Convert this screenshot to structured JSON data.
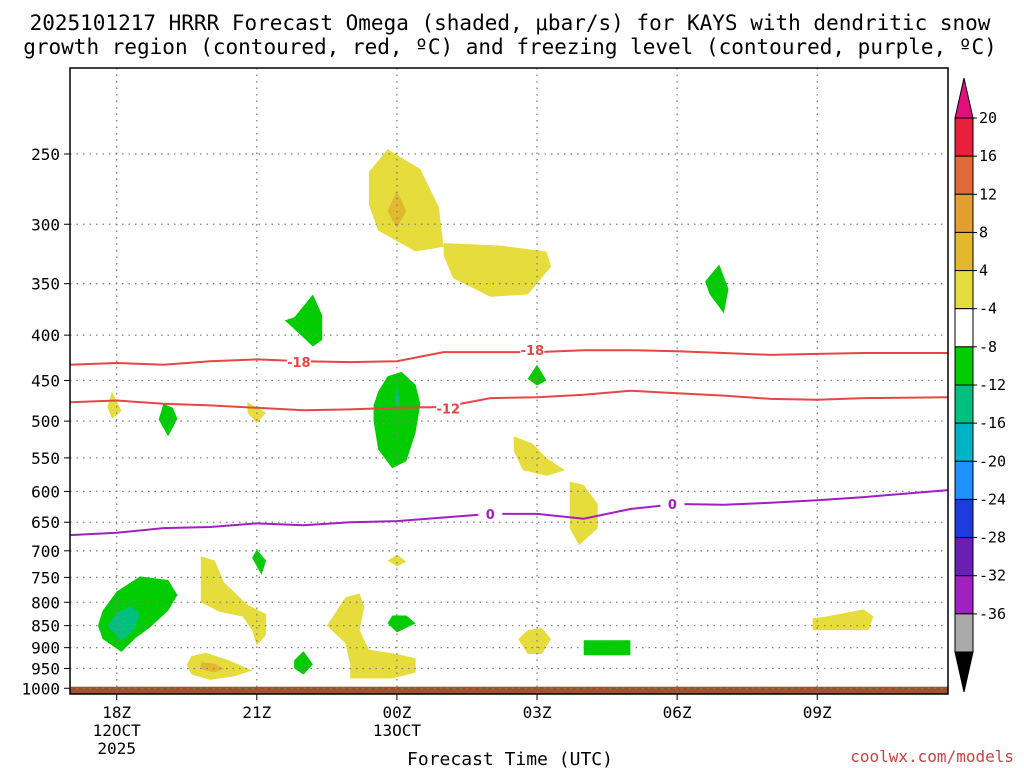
{
  "chart_data": {
    "type": "contour",
    "title_line1": "2025101217 HRRR Forecast Omega (shaded, μbar/s) for KAYS with dendritic snow",
    "title_line2": "growth region (contoured, red, ºC) and freezing level (contoured, purple, ºC)",
    "xlabel": "Forecast Time (UTC)",
    "ylabel": "",
    "x_ticks": [
      {
        "h": 18,
        "label": "18Z",
        "sub": [
          "12OCT",
          "2025"
        ]
      },
      {
        "h": 21,
        "label": "21Z",
        "sub": []
      },
      {
        "h": 24,
        "label": "00Z",
        "sub": [
          "13OCT"
        ]
      },
      {
        "h": 27,
        "label": "03Z",
        "sub": []
      },
      {
        "h": 30,
        "label": "06Z",
        "sub": []
      },
      {
        "h": 33,
        "label": "09Z",
        "sub": []
      }
    ],
    "xlim": [
      17,
      35.8
    ],
    "y_ticks": [
      250,
      300,
      350,
      400,
      450,
      500,
      550,
      600,
      650,
      700,
      750,
      800,
      850,
      900,
      950,
      1000
    ],
    "ylim_hpa": [
      200,
      1015
    ],
    "contour_lines": [
      {
        "name": "-18",
        "color": "#e84545",
        "points": [
          [
            17,
            432
          ],
          [
            18,
            430
          ],
          [
            19,
            432
          ],
          [
            20,
            428
          ],
          [
            21,
            426
          ],
          [
            22,
            428
          ],
          [
            23,
            429
          ],
          [
            24,
            428
          ],
          [
            25,
            418
          ],
          [
            26,
            418
          ],
          [
            27,
            418
          ],
          [
            28,
            416
          ],
          [
            29,
            416
          ],
          [
            30,
            417
          ],
          [
            31,
            419
          ],
          [
            32,
            421
          ],
          [
            33,
            420
          ],
          [
            34,
            419
          ],
          [
            35.8,
            419
          ]
        ],
        "labels": [
          [
            21.9,
            429
          ],
          [
            26.9,
            416
          ]
        ]
      },
      {
        "name": "-12",
        "color": "#e84545",
        "points": [
          [
            17,
            476
          ],
          [
            18,
            474
          ],
          [
            19,
            478
          ],
          [
            20,
            480
          ],
          [
            21,
            483
          ],
          [
            22,
            486
          ],
          [
            23,
            485
          ],
          [
            24,
            483
          ],
          [
            25,
            482
          ],
          [
            26,
            471
          ],
          [
            27,
            470
          ],
          [
            28,
            467
          ],
          [
            29,
            462
          ],
          [
            30,
            465
          ],
          [
            31,
            468
          ],
          [
            32,
            472
          ],
          [
            33,
            473
          ],
          [
            34,
            471
          ],
          [
            35.8,
            470
          ]
        ],
        "labels": [
          [
            25.1,
            484
          ]
        ]
      },
      {
        "name": "0",
        "color": "#a020c0",
        "points": [
          [
            17,
            672
          ],
          [
            18,
            668
          ],
          [
            19,
            660
          ],
          [
            20,
            658
          ],
          [
            21,
            652
          ],
          [
            22,
            655
          ],
          [
            23,
            650
          ],
          [
            24,
            648
          ],
          [
            25,
            642
          ],
          [
            26,
            636
          ],
          [
            27,
            636
          ],
          [
            28,
            644
          ],
          [
            29,
            628
          ],
          [
            30,
            620
          ],
          [
            31,
            621
          ],
          [
            32,
            618
          ],
          [
            33,
            614
          ],
          [
            34,
            609
          ],
          [
            35.8,
            598
          ]
        ],
        "labels": [
          [
            26.0,
            636
          ],
          [
            29.9,
            620
          ]
        ]
      }
    ],
    "shaded_regions": [
      {
        "color": "#e6dc3c",
        "points": [
          [
            23.4,
            262
          ],
          [
            23.8,
            247
          ],
          [
            24.5,
            260
          ],
          [
            24.9,
            287
          ],
          [
            25.0,
            318
          ],
          [
            24.4,
            322
          ],
          [
            23.6,
            305
          ],
          [
            23.4,
            285
          ]
        ]
      },
      {
        "color": "#e2b82e",
        "points": [
          [
            24.0,
            275
          ],
          [
            24.2,
            290
          ],
          [
            24.0,
            303
          ],
          [
            23.8,
            290
          ]
        ]
      },
      {
        "color": "#e6dc3c",
        "points": [
          [
            25.0,
            315
          ],
          [
            26.2,
            317
          ],
          [
            27.2,
            322
          ],
          [
            27.3,
            335
          ],
          [
            26.8,
            360
          ],
          [
            26.0,
            362
          ],
          [
            25.2,
            345
          ],
          [
            25.0,
            325
          ]
        ]
      },
      {
        "color": "#e6dc3c",
        "points": [
          [
            17.9,
            463
          ],
          [
            18.1,
            487
          ],
          [
            17.9,
            497
          ],
          [
            17.8,
            482
          ]
        ]
      },
      {
        "color": "#e6dc3c",
        "points": [
          [
            20.8,
            476
          ],
          [
            21.2,
            489
          ],
          [
            21.0,
            503
          ],
          [
            20.8,
            489
          ]
        ]
      },
      {
        "color": "#e6dc3c",
        "points": [
          [
            26.5,
            520
          ],
          [
            26.9,
            530
          ],
          [
            27.2,
            550
          ],
          [
            27.6,
            568
          ],
          [
            27.2,
            576
          ],
          [
            26.7,
            568
          ],
          [
            26.5,
            540
          ]
        ]
      },
      {
        "color": "#e6dc3c",
        "points": [
          [
            27.7,
            585
          ],
          [
            28.0,
            590
          ],
          [
            28.3,
            620
          ],
          [
            28.3,
            660
          ],
          [
            27.9,
            690
          ],
          [
            27.7,
            660
          ],
          [
            27.7,
            610
          ]
        ]
      },
      {
        "color": "#e6dc3c",
        "points": [
          [
            19.8,
            710
          ],
          [
            20.1,
            718
          ],
          [
            20.3,
            760
          ],
          [
            20.8,
            805
          ],
          [
            21.2,
            825
          ],
          [
            21.2,
            870
          ],
          [
            21.0,
            895
          ],
          [
            20.9,
            860
          ],
          [
            20.7,
            830
          ],
          [
            20.2,
            820
          ],
          [
            19.8,
            800
          ],
          [
            19.8,
            760
          ]
        ]
      },
      {
        "color": "#e6dc3c",
        "points": [
          [
            23.8,
            718
          ],
          [
            24.0,
            707
          ],
          [
            24.2,
            720
          ],
          [
            24.0,
            729
          ]
        ]
      },
      {
        "color": "#e6dc3c",
        "points": [
          [
            22.6,
            835
          ],
          [
            22.9,
            790
          ],
          [
            23.2,
            782
          ],
          [
            23.3,
            810
          ],
          [
            23.2,
            860
          ],
          [
            23.4,
            905
          ],
          [
            24.0,
            915
          ],
          [
            24.4,
            925
          ],
          [
            24.4,
            960
          ],
          [
            23.9,
            975
          ],
          [
            23.0,
            975
          ],
          [
            23.0,
            940
          ],
          [
            22.9,
            890
          ],
          [
            22.5,
            850
          ]
        ]
      },
      {
        "color": "#e6dc3c",
        "points": [
          [
            19.6,
            920
          ],
          [
            19.9,
            912
          ],
          [
            20.4,
            930
          ],
          [
            20.9,
            955
          ],
          [
            20.5,
            970
          ],
          [
            20.0,
            978
          ],
          [
            19.6,
            965
          ],
          [
            19.5,
            940
          ]
        ]
      },
      {
        "color": "#e2b82e",
        "points": [
          [
            19.8,
            935
          ],
          [
            20.1,
            938
          ],
          [
            20.3,
            950
          ],
          [
            20.1,
            960
          ],
          [
            19.8,
            952
          ]
        ]
      },
      {
        "color": "#e6dc3c",
        "points": [
          [
            26.6,
            880
          ],
          [
            26.8,
            860
          ],
          [
            27.1,
            855
          ],
          [
            27.3,
            880
          ],
          [
            27.1,
            915
          ],
          [
            26.8,
            915
          ]
        ]
      },
      {
        "color": "#e6dc3c",
        "points": [
          [
            32.9,
            834
          ],
          [
            33.2,
            830
          ],
          [
            34.0,
            815
          ],
          [
            34.2,
            830
          ],
          [
            34.1,
            860
          ],
          [
            32.9,
            860
          ]
        ]
      },
      {
        "color": "#00cc00",
        "points": [
          [
            21.8,
            382
          ],
          [
            22.2,
            360
          ],
          [
            22.4,
            380
          ],
          [
            22.4,
            405
          ],
          [
            22.2,
            412
          ],
          [
            21.9,
            398
          ],
          [
            21.6,
            385
          ]
        ]
      },
      {
        "color": "#00cc00",
        "points": [
          [
            30.6,
            348
          ],
          [
            30.9,
            333
          ],
          [
            31.1,
            355
          ],
          [
            31.0,
            378
          ],
          [
            30.7,
            360
          ]
        ]
      },
      {
        "color": "#00cc00",
        "points": [
          [
            26.8,
            448
          ],
          [
            27.0,
            432
          ],
          [
            27.2,
            450
          ],
          [
            27.0,
            456
          ]
        ]
      },
      {
        "color": "#00cc00",
        "points": [
          [
            19.0,
            478
          ],
          [
            19.2,
            483
          ],
          [
            19.3,
            497
          ],
          [
            19.1,
            520
          ],
          [
            18.9,
            498
          ]
        ]
      },
      {
        "color": "#00cc00",
        "points": [
          [
            23.6,
            463
          ],
          [
            23.8,
            445
          ],
          [
            24.1,
            440
          ],
          [
            24.4,
            455
          ],
          [
            24.5,
            478
          ],
          [
            24.4,
            515
          ],
          [
            24.2,
            555
          ],
          [
            23.9,
            565
          ],
          [
            23.6,
            538
          ],
          [
            23.5,
            500
          ],
          [
            23.5,
            480
          ]
        ]
      },
      {
        "color": "#00c080",
        "points": [
          [
            23.95,
            470
          ],
          [
            24.0,
            458
          ],
          [
            24.05,
            472
          ],
          [
            24.0,
            486
          ]
        ]
      },
      {
        "color": "#00cc00",
        "points": [
          [
            20.9,
            713
          ],
          [
            21.0,
            698
          ],
          [
            21.2,
            718
          ],
          [
            21.1,
            745
          ]
        ]
      },
      {
        "color": "#00cc00",
        "points": [
          [
            17.7,
            818
          ],
          [
            18.0,
            778
          ],
          [
            18.5,
            748
          ],
          [
            19.1,
            755
          ],
          [
            19.3,
            785
          ],
          [
            19.1,
            818
          ],
          [
            18.7,
            855
          ],
          [
            18.4,
            878
          ],
          [
            18.1,
            910
          ],
          [
            17.7,
            880
          ],
          [
            17.6,
            850
          ]
        ]
      },
      {
        "color": "#00c080",
        "points": [
          [
            17.8,
            850
          ],
          [
            18.0,
            822
          ],
          [
            18.3,
            808
          ],
          [
            18.5,
            823
          ],
          [
            18.4,
            855
          ],
          [
            18.1,
            885
          ]
        ]
      },
      {
        "color": "#00cc00",
        "points": [
          [
            23.8,
            845
          ],
          [
            23.9,
            828
          ],
          [
            24.2,
            828
          ],
          [
            24.4,
            845
          ],
          [
            24.0,
            865
          ]
        ]
      },
      {
        "color": "#00cc00",
        "points": [
          [
            28.0,
            883
          ],
          [
            29.0,
            883
          ],
          [
            29.0,
            918
          ],
          [
            28.0,
            918
          ]
        ]
      },
      {
        "color": "#00cc00",
        "points": [
          [
            21.8,
            930
          ],
          [
            22.0,
            908
          ],
          [
            22.2,
            940
          ],
          [
            22.0,
            965
          ],
          [
            21.8,
            950
          ]
        ]
      }
    ],
    "ground": {
      "color": "#a0522d",
      "from_hpa": 996
    },
    "colorbar": {
      "levels": [
        20,
        16,
        12,
        8,
        4,
        -4,
        -8,
        -12,
        -16,
        -20,
        -24,
        -28,
        -32,
        -36
      ],
      "colors": [
        "#e8203c",
        "#e06a38",
        "#e39e30",
        "#e2b82e",
        "#e6dc3c",
        "#ffffff",
        "#00cc00",
        "#00c080",
        "#00b4c8",
        "#1e90ff",
        "#1e3cdc",
        "#6a1eb4",
        "#a020c0",
        "#aaaaaa"
      ],
      "top_arrow_color": "#e0107c",
      "bottom_arrow_color": "#000000"
    },
    "credit": "coolwx.com/models"
  }
}
